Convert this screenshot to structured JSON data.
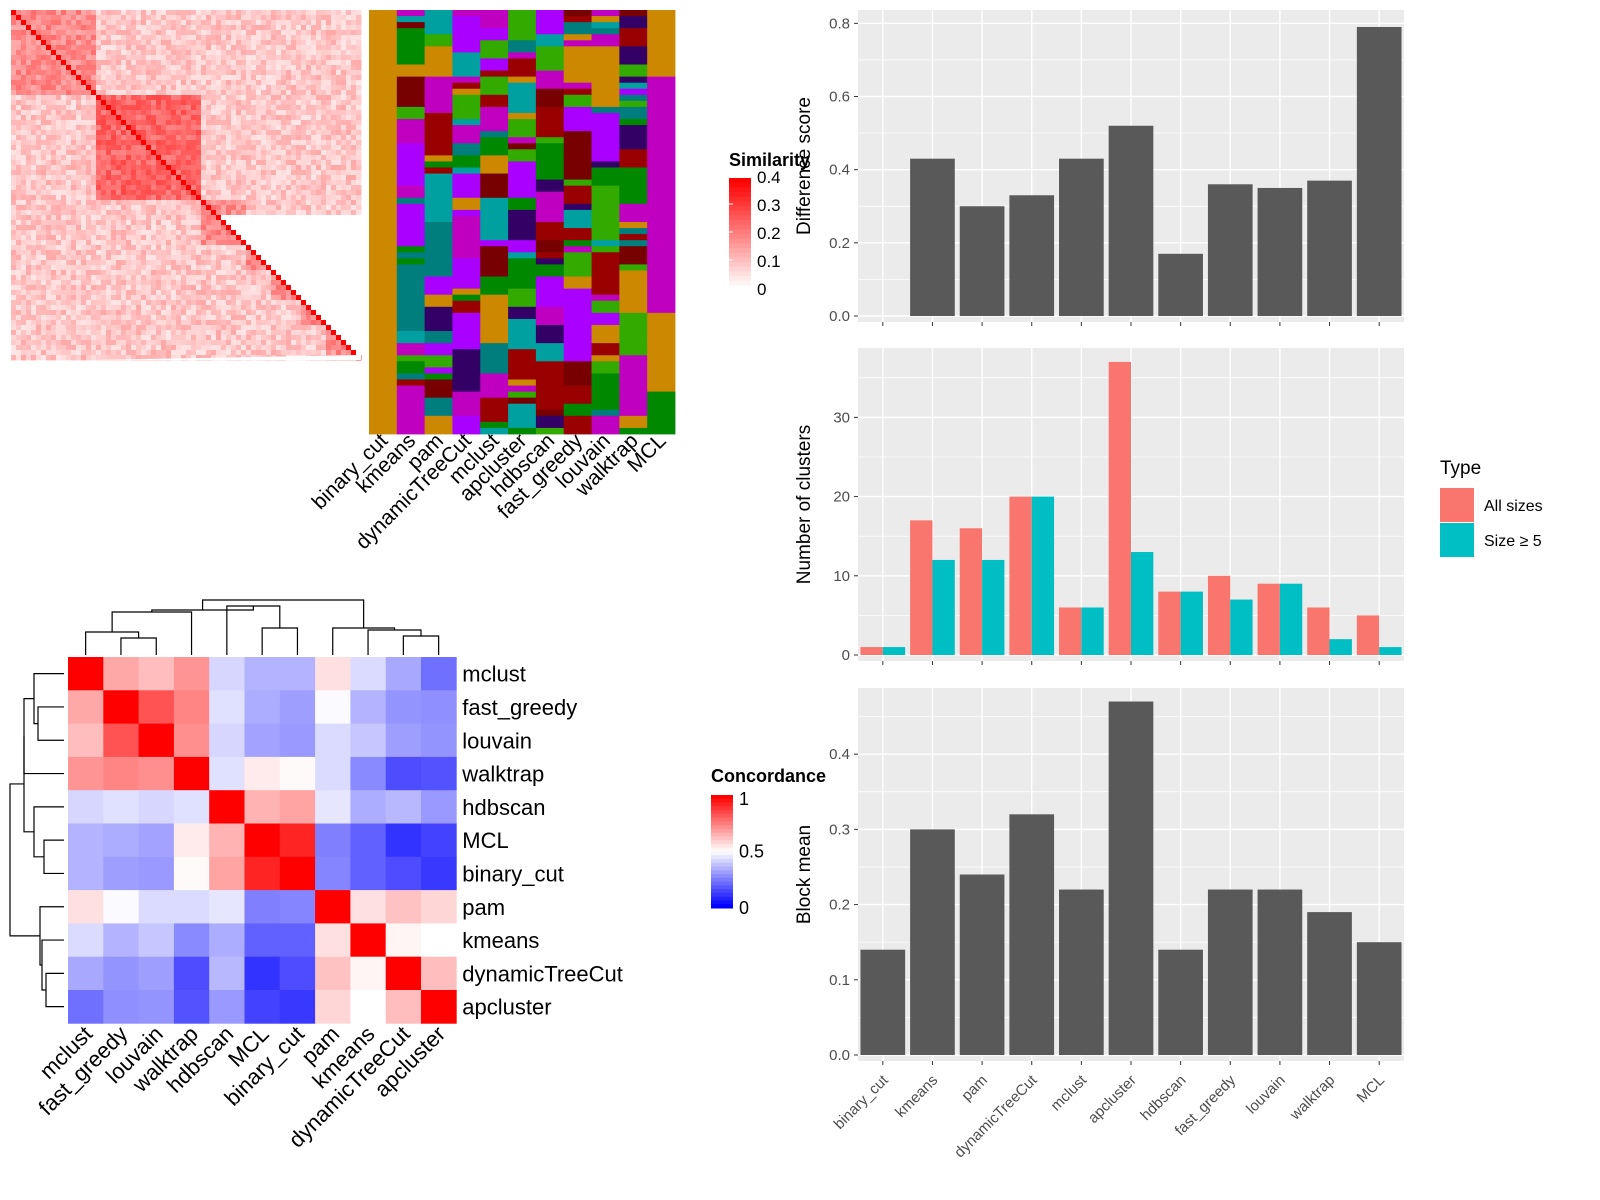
{
  "chart_data": [
    {
      "type": "heatmap",
      "id": "similarity-heatmap",
      "description_note": "",
      "legend": {
        "title": "Similarity",
        "ticks": [
          "0",
          "0.1",
          "0.2",
          "0.3",
          "0.4"
        ],
        "colors": [
          "#ffffff",
          "#ff0000"
        ]
      }
    },
    {
      "type": "heatmap",
      "id": "cluster-assignment-heatmap",
      "columns": [
        "binary_cut",
        "kmeans",
        "pam",
        "dynamicTreeCut",
        "mclust",
        "apcluster",
        "hdbscan",
        "fast_greedy",
        "louvain",
        "walktrap",
        "MCL"
      ]
    },
    {
      "type": "heatmap",
      "id": "concordance-heatmap",
      "rows": [
        "mclust",
        "fast_greedy",
        "louvain",
        "walktrap",
        "hdbscan",
        "MCL",
        "binary_cut",
        "pam",
        "kmeans",
        "dynamicTreeCut",
        "apcluster"
      ],
      "columns": [
        "mclust",
        "fast_greedy",
        "louvain",
        "walktrap",
        "hdbscan",
        "MCL",
        "binary_cut",
        "pam",
        "kmeans",
        "dynamicTreeCut",
        "apcluster"
      ],
      "values": [
        [
          1.0,
          0.67,
          0.63,
          0.71,
          0.42,
          0.35,
          0.35,
          0.56,
          0.43,
          0.33,
          0.22
        ],
        [
          0.67,
          1.0,
          0.84,
          0.74,
          0.44,
          0.34,
          0.31,
          0.49,
          0.35,
          0.29,
          0.28
        ],
        [
          0.63,
          0.84,
          1.0,
          0.72,
          0.42,
          0.32,
          0.3,
          0.43,
          0.39,
          0.31,
          0.29
        ],
        [
          0.71,
          0.74,
          0.72,
          1.0,
          0.44,
          0.54,
          0.51,
          0.43,
          0.27,
          0.15,
          0.16
        ],
        [
          0.42,
          0.44,
          0.42,
          0.44,
          1.0,
          0.65,
          0.68,
          0.45,
          0.34,
          0.36,
          0.3
        ],
        [
          0.35,
          0.34,
          0.32,
          0.54,
          0.65,
          1.0,
          0.93,
          0.25,
          0.19,
          0.1,
          0.13
        ],
        [
          0.35,
          0.31,
          0.3,
          0.51,
          0.68,
          0.93,
          1.0,
          0.26,
          0.19,
          0.15,
          0.11
        ],
        [
          0.56,
          0.49,
          0.43,
          0.43,
          0.45,
          0.25,
          0.26,
          1.0,
          0.56,
          0.62,
          0.58
        ],
        [
          0.43,
          0.35,
          0.39,
          0.27,
          0.34,
          0.19,
          0.19,
          0.56,
          1.0,
          0.52,
          0.5
        ],
        [
          0.33,
          0.29,
          0.31,
          0.15,
          0.36,
          0.1,
          0.15,
          0.62,
          0.52,
          1.0,
          0.63
        ],
        [
          0.22,
          0.28,
          0.29,
          0.16,
          0.3,
          0.13,
          0.11,
          0.58,
          0.5,
          0.63,
          1.0
        ]
      ],
      "legend": {
        "title": "Concordance",
        "ticks": [
          "0",
          "0.5",
          "1"
        ],
        "colors": [
          "#0000ff",
          "#ffffff",
          "#ff0000"
        ]
      }
    },
    {
      "type": "bar",
      "id": "difference-score",
      "categories": [
        "binary_cut",
        "kmeans",
        "pam",
        "dynamicTreeCut",
        "mclust",
        "apcluster",
        "hdbscan",
        "fast_greedy",
        "louvain",
        "walktrap",
        "MCL"
      ],
      "values": [
        0.0,
        0.43,
        0.3,
        0.33,
        0.43,
        0.52,
        0.17,
        0.36,
        0.35,
        0.37,
        0.79
      ],
      "ylabel": "Difference score",
      "ylim": [
        0,
        0.82
      ],
      "yticks": [
        "0.0",
        "0.2",
        "0.4",
        "0.6",
        "0.8"
      ]
    },
    {
      "type": "bar",
      "id": "number-of-clusters",
      "categories": [
        "binary_cut",
        "kmeans",
        "pam",
        "dynamicTreeCut",
        "mclust",
        "apcluster",
        "hdbscan",
        "fast_greedy",
        "louvain",
        "walktrap",
        "MCL"
      ],
      "series": [
        {
          "name": "All sizes",
          "values": [
            1,
            17,
            16,
            20,
            6,
            37,
            8,
            10,
            9,
            6,
            5
          ],
          "color": "#F8766D"
        },
        {
          "name": "Size ≥ 5",
          "values": [
            1,
            12,
            12,
            20,
            6,
            13,
            8,
            7,
            9,
            2,
            1
          ],
          "color": "#00BFC4"
        }
      ],
      "ylabel": "Number of clusters",
      "ylim": [
        0,
        38
      ],
      "yticks": [
        "0",
        "10",
        "20",
        "30"
      ],
      "legend": {
        "title": "Type",
        "position": "right"
      }
    },
    {
      "type": "bar",
      "id": "block-mean",
      "categories": [
        "binary_cut",
        "kmeans",
        "pam",
        "dynamicTreeCut",
        "mclust",
        "apcluster",
        "hdbscan",
        "fast_greedy",
        "louvain",
        "walktrap",
        "MCL"
      ],
      "values": [
        0.14,
        0.3,
        0.24,
        0.32,
        0.22,
        0.47,
        0.14,
        0.22,
        0.22,
        0.19,
        0.15
      ],
      "ylabel": "Block mean",
      "ylim": [
        0,
        0.48
      ],
      "yticks": [
        "0.0",
        "0.1",
        "0.2",
        "0.3",
        "0.4"
      ]
    }
  ],
  "colors": {
    "panel_bg": "#ebebeb",
    "grid": "#ffffff",
    "bar_fill": "#595959",
    "axis_text": "#4d4d4d",
    "cluster_palette": [
      "#cc8800",
      "#007d7d",
      "#c000c0",
      "#008800",
      "#990000",
      "#00a0a0",
      "#33aa00",
      "#330066",
      "#aa00ff",
      "#770000"
    ]
  }
}
